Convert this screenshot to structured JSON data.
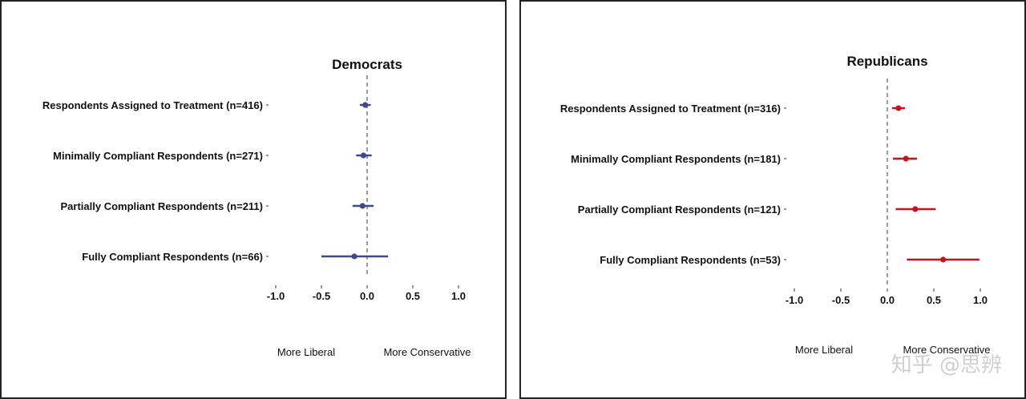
{
  "chart_data": [
    {
      "type": "scatter",
      "title": "Democrats",
      "categories": [
        "Respondents Assigned to Treatment (n=416)",
        "Minimally Compliant Respondents (n=271)",
        "Partially Compliant Respondents (n=211)",
        "Fully Compliant Respondents (n=66)"
      ],
      "estimates": [
        -0.02,
        -0.04,
        -0.05,
        -0.14
      ],
      "ci_low": [
        -0.08,
        -0.12,
        -0.16,
        -0.5
      ],
      "ci_high": [
        0.04,
        0.05,
        0.07,
        0.23
      ],
      "xlim": [
        -1.0,
        1.0
      ],
      "xticks": [
        "-1.0",
        "-0.5",
        "0.0",
        "0.5",
        "1.0"
      ],
      "reference_line": 0,
      "direction_labels": [
        "More  Liberal",
        "More Conservative"
      ],
      "color": "#3b4a8c"
    },
    {
      "type": "scatter",
      "title": "Republicans",
      "categories": [
        "Respondents Assigned to Treatment (n=316)",
        "Minimally Compliant Respondents (n=181)",
        "Partially Compliant Respondents (n=121)",
        "Fully Compliant Respondents (n=53)"
      ],
      "estimates": [
        0.12,
        0.2,
        0.3,
        0.6
      ],
      "ci_low": [
        0.05,
        0.06,
        0.09,
        0.21
      ],
      "ci_high": [
        0.19,
        0.32,
        0.52,
        0.99
      ],
      "xlim": [
        -1.0,
        1.0
      ],
      "xticks": [
        "-1.0",
        "-0.5",
        "0.0",
        "0.5",
        "1.0"
      ],
      "reference_line": 0,
      "direction_labels": [
        "More  Liberal",
        "More Conservative"
      ],
      "color": "#c4151c"
    }
  ],
  "watermark": "知乎 @思辨"
}
